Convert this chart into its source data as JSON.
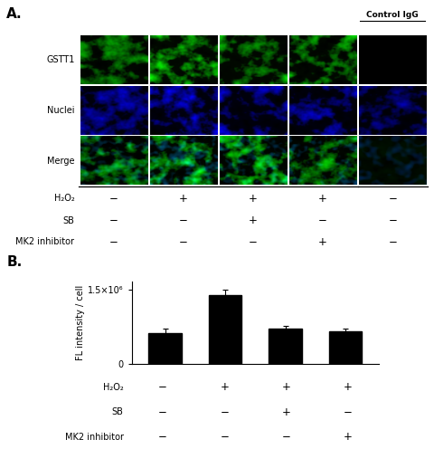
{
  "panel_A_label": "A.",
  "panel_B_label": "B.",
  "bar_values": [
    0.62,
    1.38,
    0.72,
    0.65
  ],
  "bar_errors": [
    0.09,
    0.12,
    0.05,
    0.06
  ],
  "bar_color": "#000000",
  "bar_width": 0.55,
  "ylim": [
    0,
    1.65
  ],
  "ylabel": "FL intensity / cell",
  "ylabel_fontsize": 7,
  "scale_factor": 1000000,
  "h2o2_signs": [
    "−",
    "+",
    "+",
    "+",
    "−"
  ],
  "sb_signs": [
    "−",
    "−",
    "+",
    "−",
    "−"
  ],
  "mk2_signs": [
    "−",
    "−",
    "−",
    "+",
    "−"
  ],
  "h2o2_signs_B": [
    "−",
    "+",
    "+",
    "+"
  ],
  "sb_signs_B": [
    "−",
    "−",
    "+",
    "−"
  ],
  "mk2_signs_B": [
    "−",
    "−",
    "−",
    "+"
  ],
  "row_labels": [
    "H₂O₂",
    "SB",
    "MK2 inhibitor"
  ],
  "sign_fontsize": 8,
  "grid_rows": 3,
  "grid_cols": 5,
  "row_names": [
    "GSTT1",
    "Nuclei",
    "Merge"
  ],
  "control_igg_label": "Control IgG",
  "background": "#ffffff",
  "line_color": "#000000",
  "tick_fontsize": 7,
  "capsize": 2,
  "elinewidth": 0.8,
  "ecolor": "#000000",
  "ytick_label_top": "1.5×10⁶"
}
